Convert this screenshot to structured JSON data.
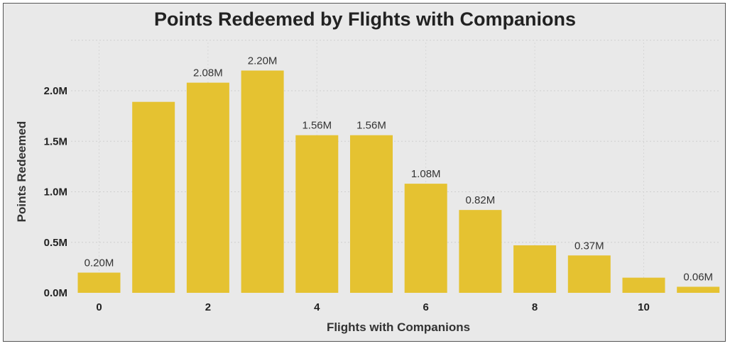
{
  "chart_data": {
    "type": "bar",
    "title": "Points Redeemed by Flights with Companions",
    "xlabel": "Flights with Companions",
    "ylabel": "Points Redeemed",
    "categories": [
      0,
      1,
      2,
      3,
      4,
      5,
      6,
      7,
      8,
      9,
      10,
      11
    ],
    "values": [
      0.2,
      1.89,
      2.08,
      2.2,
      1.56,
      1.56,
      1.08,
      0.82,
      0.47,
      0.37,
      0.15,
      0.06
    ],
    "value_unit": "M",
    "data_labels": [
      "0.20M",
      "",
      "2.08M",
      "2.20M",
      "1.56M",
      "1.56M",
      "1.08M",
      "0.82M",
      "",
      "0.37M",
      "",
      "0.06M"
    ],
    "x_ticks": [
      "0",
      "2",
      "4",
      "6",
      "8",
      "10"
    ],
    "y_ticks": [
      "0.0M",
      "0.5M",
      "1.0M",
      "1.5M",
      "2.0M"
    ],
    "ylim": [
      0,
      2.5
    ],
    "grid": true,
    "bar_color": "#e5c231",
    "background": "#e9e9e9"
  }
}
